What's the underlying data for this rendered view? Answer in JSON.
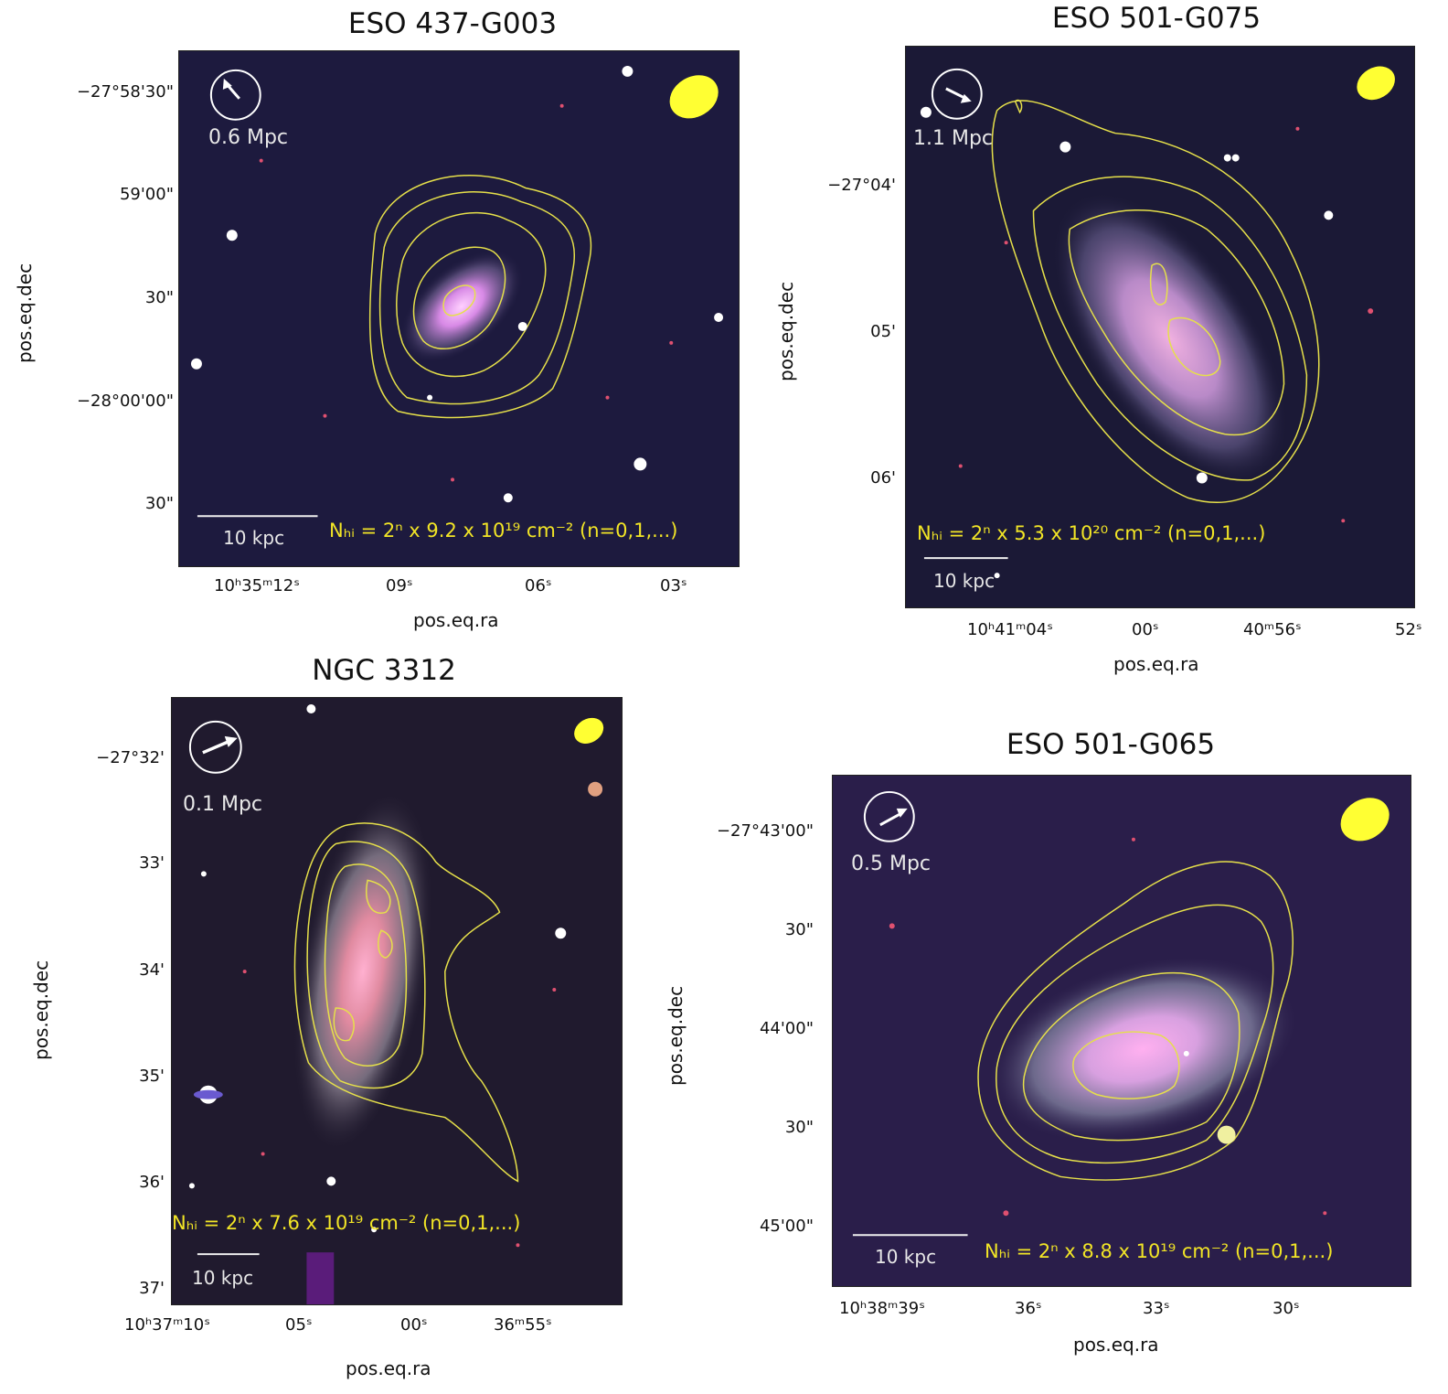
{
  "panels": [
    {
      "title": "ESO 437-G003",
      "xlabel": "pos.eq.ra",
      "ylabel": "pos.eq.dec",
      "yticks": [
        "−27°58'30\"",
        "59'00\"",
        "30\"",
        "−28°00'00\"",
        "30\""
      ],
      "xticks": [
        "10ʰ35ᵐ12ˢ",
        "09ˢ",
        "06ˢ",
        "03ˢ"
      ],
      "distance": "0.6 Mpc",
      "scalebar": "10 kpc",
      "nhi": "Nₕᵢ = 2ⁿ x 9.2 x 10¹⁹ cm⁻² (n=0,1,...)"
    },
    {
      "title": "ESO 501-G075",
      "xlabel": "pos.eq.ra",
      "ylabel": "pos.eq.dec",
      "yticks": [
        "−27°04'",
        "05'",
        "06'"
      ],
      "xticks": [
        "10ʰ41ᵐ04ˢ",
        "00ˢ",
        "40ᵐ56ˢ",
        "52ˢ"
      ],
      "distance": "1.1 Mpc",
      "scalebar": "10 kpc",
      "nhi": "Nₕᵢ = 2ⁿ x 5.3 x 10²⁰ cm⁻² (n=0,1,...)"
    },
    {
      "title": "NGC 3312",
      "xlabel": "pos.eq.ra",
      "ylabel": "pos.eq.dec",
      "yticks": [
        "−27°32'",
        "33'",
        "34'",
        "35'",
        "36'",
        "37'"
      ],
      "xticks": [
        "10ʰ37ᵐ10ˢ",
        "05ˢ",
        "00ˢ",
        "36ᵐ55ˢ"
      ],
      "distance": "0.1 Mpc",
      "scalebar": "10 kpc",
      "nhi": "Nₕᵢ = 2ⁿ x 7.6 x 10¹⁹ cm⁻² (n=0,1,...)"
    },
    {
      "title": "ESO 501-G065",
      "xlabel": "pos.eq.ra",
      "ylabel": "pos.eq.dec",
      "yticks": [
        "−27°43'00\"",
        "30\"",
        "44'00\"",
        "30\"",
        "45'00\""
      ],
      "xticks": [
        "10ʰ38ᵐ39ˢ",
        "36ˢ",
        "33ˢ",
        "30ˢ"
      ],
      "distance": "0.5 Mpc",
      "scalebar": "10 kpc",
      "nhi": "Nₕᵢ = 2ⁿ x 8.8 x 10¹⁹ cm⁻² (n=0,1,...)"
    }
  ],
  "colors": {
    "sky": "#1a1838",
    "contour": "#e6e04a",
    "beam": "#ffff33",
    "label_text": "#f2e526"
  }
}
